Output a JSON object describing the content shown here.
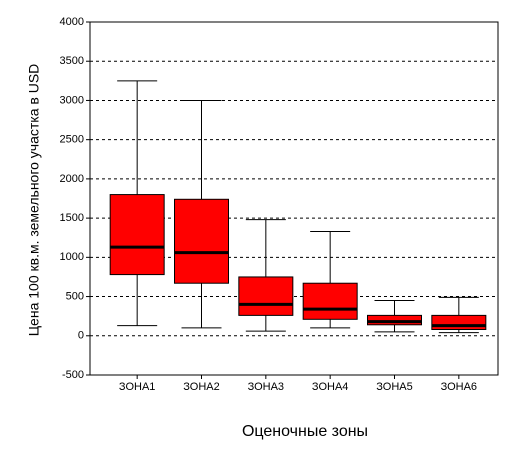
{
  "chart_data": {
    "type": "box",
    "xlabel": "Оценочные зоны",
    "ylabel": "Цена 100 кв.м. земельного участка в USD",
    "categories": [
      "ЗОНА1",
      "ЗОНА2",
      "ЗОНА3",
      "ЗОНА4",
      "ЗОНА5",
      "ЗОНА6"
    ],
    "boxes": [
      {
        "min": 130,
        "q1": 780,
        "median": 1130,
        "q3": 1800,
        "max": 3250
      },
      {
        "min": 100,
        "q1": 670,
        "median": 1060,
        "q3": 1740,
        "max": 3000
      },
      {
        "min": 60,
        "q1": 260,
        "median": 400,
        "q3": 750,
        "max": 1480
      },
      {
        "min": 100,
        "q1": 210,
        "median": 340,
        "q3": 670,
        "max": 1330
      },
      {
        "min": 50,
        "q1": 140,
        "median": 180,
        "q3": 260,
        "max": 450
      },
      {
        "min": 40,
        "q1": 80,
        "median": 130,
        "q3": 260,
        "max": 490
      }
    ],
    "color": "#ff0000",
    "median_color": "#000000",
    "ylim": [
      -500,
      4000
    ],
    "yticks": [
      -500,
      0,
      500,
      1000,
      1500,
      2000,
      2500,
      3000,
      3500,
      4000
    ],
    "grid": true
  }
}
